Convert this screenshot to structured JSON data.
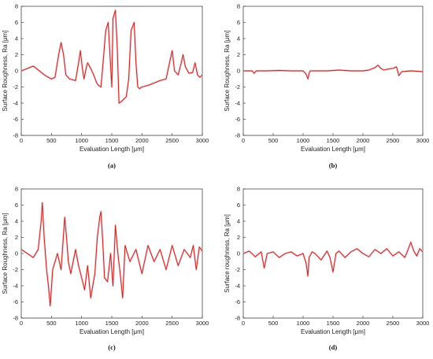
{
  "colors": {
    "line": "#b5251b",
    "glow": "#f3b8c2",
    "frame": "#444444"
  },
  "chart_data": [
    {
      "type": "line",
      "caption": "(a)",
      "xlabel": "Evaluation Length [μm]",
      "ylabel": "Surface Roughness, Ra [μm]",
      "xlim": [
        0,
        3000
      ],
      "ylim": [
        -8,
        8
      ],
      "xticks": [
        "0",
        "500",
        "1000",
        "1500",
        "2000",
        "2500",
        "3000"
      ],
      "yticks": [
        "8",
        "6",
        "4",
        "2",
        "0",
        "-2",
        "-4",
        "-6",
        "-8"
      ],
      "grid": false,
      "x": [
        0,
        100,
        200,
        300,
        400,
        500,
        560,
        620,
        660,
        700,
        740,
        800,
        900,
        950,
        980,
        1010,
        1040,
        1080,
        1100,
        1150,
        1200,
        1250,
        1280,
        1320,
        1350,
        1400,
        1440,
        1470,
        1500,
        1520,
        1560,
        1590,
        1620,
        1660,
        1700,
        1740,
        1780,
        1820,
        1870,
        1900,
        1930,
        1960,
        2000,
        2100,
        2200,
        2300,
        2400,
        2470,
        2500,
        2540,
        2600,
        2650,
        2680,
        2720,
        2780,
        2840,
        2880,
        2920,
        2960,
        3000
      ],
      "y": [
        0.0,
        0.3,
        0.6,
        0.0,
        -0.6,
        -1.0,
        -0.8,
        2.0,
        3.5,
        2.0,
        -0.5,
        -1.0,
        -1.2,
        1.0,
        2.5,
        0.5,
        -1.0,
        0.5,
        1.0,
        0.3,
        -0.5,
        -1.5,
        -1.8,
        -2.0,
        0.5,
        5.0,
        6.0,
        2.0,
        -2.0,
        6.5,
        7.5,
        3.0,
        -4.0,
        -3.8,
        -3.5,
        -3.2,
        -1.0,
        5.0,
        6.0,
        1.0,
        -2.0,
        -2.2,
        -2.0,
        -1.8,
        -1.5,
        -1.2,
        -1.0,
        1.5,
        2.5,
        0.0,
        -0.5,
        1.0,
        2.0,
        0.5,
        -0.3,
        -0.2,
        1.0,
        -0.5,
        -0.8,
        -0.5
      ]
    },
    {
      "type": "line",
      "caption": "(b)",
      "xlabel": "Evaluation Length [μm]",
      "ylabel": "Surface Roughness, Ra [μm]",
      "xlim": [
        0,
        3000
      ],
      "ylim": [
        -8,
        8
      ],
      "xticks": [
        "0",
        "500",
        "1000",
        "1500",
        "2000",
        "2500",
        "3000"
      ],
      "yticks": [
        "8",
        "6",
        "4",
        "2",
        "0",
        "-2",
        "-4",
        "-6",
        "-8"
      ],
      "grid": false,
      "x": [
        0,
        150,
        180,
        220,
        400,
        600,
        800,
        1000,
        1050,
        1080,
        1100,
        1120,
        1200,
        1400,
        1600,
        1800,
        2000,
        2100,
        2200,
        2250,
        2300,
        2350,
        2400,
        2500,
        2560,
        2580,
        2600,
        2650,
        2800,
        3000
      ],
      "y": [
        0.0,
        0.0,
        -0.3,
        0.0,
        0.0,
        0.05,
        0.0,
        0.0,
        -0.4,
        -1.0,
        -0.3,
        0.0,
        0.0,
        0.0,
        0.1,
        0.0,
        0.0,
        0.1,
        0.4,
        0.7,
        0.3,
        0.1,
        0.2,
        0.3,
        0.5,
        0.0,
        -0.6,
        -0.1,
        0.0,
        -0.1
      ]
    },
    {
      "type": "line",
      "caption": "(c)",
      "xlabel": "Evaluation Length [μm]",
      "ylabel": "Surface Roughness, Ra [μm]",
      "xlim": [
        0,
        3000
      ],
      "ylim": [
        -8,
        8
      ],
      "xticks": [
        "0",
        "500",
        "1000",
        "1500",
        "2000",
        "2500",
        "3000"
      ],
      "yticks": [
        "8",
        "6",
        "4",
        "2",
        "0",
        "-2",
        "-4",
        "-6",
        "-8"
      ],
      "grid": false,
      "x": [
        0,
        100,
        200,
        280,
        330,
        350,
        380,
        420,
        450,
        480,
        520,
        600,
        660,
        720,
        750,
        780,
        820,
        900,
        950,
        1000,
        1050,
        1100,
        1150,
        1220,
        1260,
        1300,
        1320,
        1350,
        1380,
        1430,
        1480,
        1520,
        1560,
        1600,
        1640,
        1680,
        1720,
        1800,
        1900,
        2000,
        2100,
        2200,
        2300,
        2400,
        2500,
        2600,
        2700,
        2800,
        2850,
        2900,
        2950,
        3000
      ],
      "y": [
        0.5,
        0.0,
        -0.5,
        0.5,
        4.0,
        6.3,
        2.0,
        -2.0,
        -4.0,
        -6.5,
        -2.0,
        0.0,
        -2.0,
        4.5,
        2.0,
        -1.0,
        -2.5,
        0.5,
        -1.5,
        -3.0,
        -4.5,
        -1.5,
        -5.5,
        -2.5,
        2.0,
        4.5,
        5.2,
        1.5,
        -3.0,
        -3.5,
        0.0,
        -4.0,
        3.5,
        0.0,
        -2.5,
        -5.5,
        1.0,
        -1.0,
        0.5,
        -2.5,
        1.0,
        -1.0,
        0.5,
        -2.0,
        1.0,
        -1.5,
        0.5,
        -0.5,
        1.0,
        -2.0,
        0.8,
        0.3
      ]
    },
    {
      "type": "line",
      "caption": "(d)",
      "xlabel": "Evaluation Length [μm]",
      "ylabel": "Surface roughness, Ra [μm]",
      "xlim": [
        0,
        3000
      ],
      "ylim": [
        -8,
        8
      ],
      "xticks": [
        "0",
        "500",
        "1000",
        "1500",
        "2000",
        "2500",
        "3000"
      ],
      "yticks": [
        "8",
        "6",
        "4",
        "2",
        "0",
        "-2",
        "-4",
        "-6",
        "-8"
      ],
      "grid": false,
      "x": [
        0,
        100,
        200,
        300,
        350,
        400,
        500,
        600,
        700,
        800,
        900,
        1000,
        1050,
        1080,
        1100,
        1150,
        1200,
        1300,
        1400,
        1450,
        1500,
        1550,
        1600,
        1700,
        1800,
        1900,
        2000,
        2100,
        2200,
        2300,
        2400,
        2500,
        2600,
        2700,
        2750,
        2800,
        2850,
        2900,
        2950,
        3000
      ],
      "y": [
        0.0,
        0.3,
        -0.4,
        0.2,
        -1.8,
        0.0,
        0.2,
        -0.5,
        0.0,
        0.2,
        -0.3,
        0.0,
        -1.2,
        -2.8,
        -0.5,
        0.2,
        0.0,
        -0.8,
        0.3,
        -0.5,
        -2.3,
        0.0,
        0.3,
        -0.5,
        0.2,
        0.6,
        0.0,
        -0.4,
        0.5,
        0.0,
        0.6,
        -0.3,
        0.2,
        -0.5,
        0.4,
        1.4,
        0.3,
        -0.3,
        0.6,
        0.2
      ]
    }
  ]
}
